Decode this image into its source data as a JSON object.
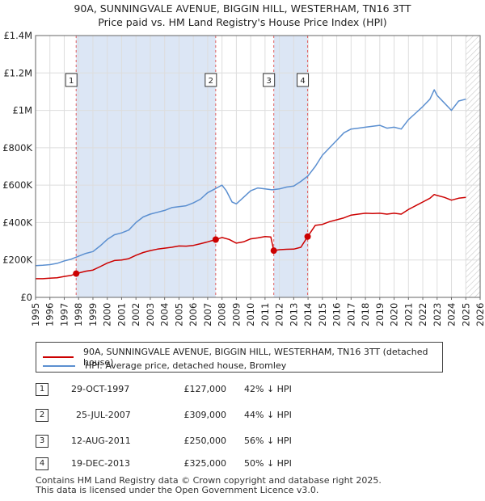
{
  "title_line1": "90A, SUNNINGVALE AVENUE, BIGGIN HILL, WESTERHAM, TN16 3TT",
  "title_line2": "Price paid vs. HM Land Registry's House Price Index (HPI)",
  "colors": {
    "property": "#cc0000",
    "hpi": "#5b8fd0",
    "shade": "#dce6f5",
    "grid": "#dddddd"
  },
  "chart_data": {
    "type": "line",
    "title": "90A, SUNNINGVALE AVENUE, BIGGIN HILL, WESTERHAM, TN16 3TT — Price paid vs. HM Land Registry's House Price Index (HPI)",
    "xlim": [
      1995,
      2026
    ],
    "ylim": [
      0,
      1400000
    ],
    "y_ticks": [
      0,
      200000,
      400000,
      600000,
      800000,
      1000000,
      1200000,
      1400000
    ],
    "y_tick_labels": [
      "£0",
      "£200K",
      "£400K",
      "£600K",
      "£800K",
      "£1M",
      "£1.2M",
      "£1.4M"
    ],
    "x_ticks": [
      1995,
      1996,
      1997,
      1998,
      1999,
      2000,
      2001,
      2002,
      2003,
      2004,
      2005,
      2006,
      2007,
      2008,
      2009,
      2010,
      2011,
      2012,
      2013,
      2014,
      2015,
      2016,
      2017,
      2018,
      2019,
      2020,
      2021,
      2022,
      2023,
      2024,
      2025,
      2026
    ],
    "x_tick_labels": [
      "1995",
      "1996",
      "1997",
      "1998",
      "1999",
      "2000",
      "2001",
      "2002",
      "2003",
      "2004",
      "2005",
      "2006",
      "2007",
      "2008",
      "2009",
      "2010",
      "2011",
      "2012",
      "2013",
      "2014",
      "2015",
      "2016",
      "2017",
      "2018",
      "2019",
      "2020",
      "2021",
      "2022",
      "2023",
      "2024",
      "2025",
      "2026"
    ],
    "hatched_from_year": 2025.0,
    "shaded_regions": [
      [
        1997.83,
        2007.56
      ],
      [
        2011.61,
        2013.97
      ]
    ],
    "series": [
      {
        "name": "90A, SUNNINGVALE AVENUE, BIGGIN HILL, WESTERHAM, TN16 3TT (detached house)",
        "x": [
          1995.0,
          1995.5,
          1996.0,
          1996.5,
          1997.0,
          1997.5,
          1997.83,
          1998.5,
          1999.0,
          1999.5,
          2000.0,
          2000.5,
          2001.0,
          2001.5,
          2002.0,
          2002.5,
          2003.0,
          2003.5,
          2004.0,
          2004.5,
          2005.0,
          2005.5,
          2006.0,
          2006.5,
          2007.0,
          2007.56,
          2008.0,
          2008.5,
          2009.0,
          2009.5,
          2010.0,
          2010.5,
          2011.0,
          2011.4,
          2011.61,
          2012.0,
          2012.5,
          2013.0,
          2013.5,
          2013.97,
          2014.5,
          2015.0,
          2015.5,
          2016.0,
          2016.5,
          2017.0,
          2017.5,
          2018.0,
          2018.5,
          2019.0,
          2019.5,
          2020.0,
          2020.5,
          2021.0,
          2021.5,
          2022.0,
          2022.5,
          2022.8,
          2023.0,
          2023.5,
          2024.0,
          2024.5,
          2025.0
        ],
        "values": [
          100000,
          100000,
          103000,
          105000,
          112000,
          118000,
          127000,
          140000,
          146000,
          164000,
          183000,
          197000,
          200000,
          207000,
          225000,
          240000,
          250000,
          258000,
          263000,
          268000,
          275000,
          274000,
          278000,
          287000,
          297000,
          309000,
          320000,
          310000,
          290000,
          297000,
          313000,
          318000,
          325000,
          323000,
          250000,
          255000,
          257000,
          258000,
          268000,
          325000,
          385000,
          390000,
          405000,
          415000,
          425000,
          440000,
          445000,
          450000,
          448000,
          450000,
          445000,
          450000,
          445000,
          470000,
          490000,
          510000,
          530000,
          550000,
          545000,
          535000,
          520000,
          530000,
          535000
        ]
      },
      {
        "name": "HPI: Average price, detached house, Bromley",
        "x": [
          1995.0,
          1995.5,
          1996.0,
          1996.5,
          1997.0,
          1997.5,
          1998.0,
          1998.5,
          1999.0,
          1999.5,
          2000.0,
          2000.5,
          2001.0,
          2001.5,
          2002.0,
          2002.5,
          2003.0,
          2003.5,
          2004.0,
          2004.5,
          2005.0,
          2005.5,
          2006.0,
          2006.5,
          2007.0,
          2007.5,
          2008.0,
          2008.3,
          2008.7,
          2009.0,
          2009.5,
          2010.0,
          2010.5,
          2011.0,
          2011.5,
          2012.0,
          2012.5,
          2013.0,
          2013.5,
          2014.0,
          2014.5,
          2015.0,
          2015.5,
          2016.0,
          2016.5,
          2017.0,
          2017.5,
          2018.0,
          2018.5,
          2019.0,
          2019.5,
          2020.0,
          2020.5,
          2021.0,
          2021.5,
          2022.0,
          2022.5,
          2022.8,
          2023.0,
          2023.5,
          2024.0,
          2024.5,
          2025.0
        ],
        "values": [
          170000,
          172000,
          175000,
          182000,
          195000,
          205000,
          220000,
          235000,
          245000,
          275000,
          310000,
          335000,
          345000,
          360000,
          400000,
          430000,
          445000,
          455000,
          465000,
          480000,
          485000,
          490000,
          505000,
          525000,
          560000,
          580000,
          600000,
          570000,
          510000,
          500000,
          535000,
          570000,
          585000,
          580000,
          575000,
          580000,
          590000,
          595000,
          620000,
          650000,
          700000,
          760000,
          800000,
          840000,
          880000,
          900000,
          905000,
          910000,
          915000,
          920000,
          905000,
          910000,
          900000,
          950000,
          985000,
          1020000,
          1060000,
          1110000,
          1080000,
          1040000,
          1000000,
          1050000,
          1060000
        ]
      }
    ],
    "sales": [
      {
        "id": "1",
        "year": 1997.83,
        "price": 127000
      },
      {
        "id": "2",
        "year": 2007.56,
        "price": 309000
      },
      {
        "id": "3",
        "year": 2011.61,
        "price": 250000
      },
      {
        "id": "4",
        "year": 2013.97,
        "price": 325000
      }
    ]
  },
  "legend": {
    "property_label": "90A, SUNNINGVALE AVENUE, BIGGIN HILL, WESTERHAM, TN16 3TT (detached house)",
    "hpi_label": "HPI: Average price, detached house, Bromley"
  },
  "transactions": [
    {
      "num": "1",
      "date": "29-OCT-1997",
      "price": "£127,000",
      "hpi": "42% ↓ HPI"
    },
    {
      "num": "2",
      "date": "25-JUL-2007",
      "price": "£309,000",
      "hpi": "44% ↓ HPI"
    },
    {
      "num": "3",
      "date": "12-AUG-2011",
      "price": "£250,000",
      "hpi": "56% ↓ HPI"
    },
    {
      "num": "4",
      "date": "19-DEC-2013",
      "price": "£325,000",
      "hpi": "50% ↓ HPI"
    }
  ],
  "footer_line1": "Contains HM Land Registry data © Crown copyright and database right 2025.",
  "footer_line2": "This data is licensed under the Open Government Licence v3.0."
}
